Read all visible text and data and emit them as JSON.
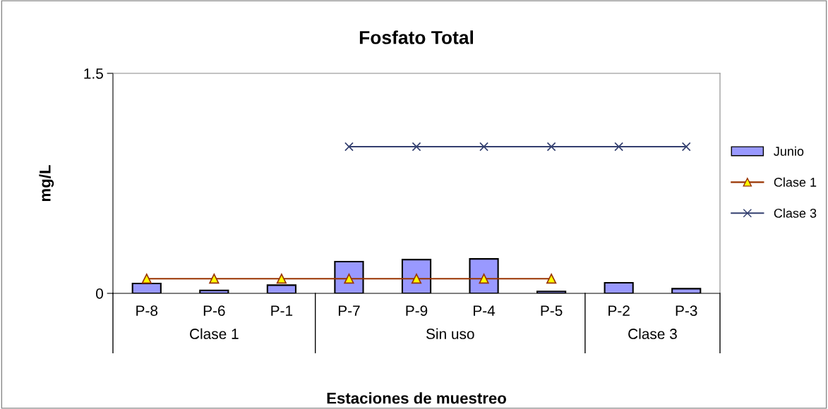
{
  "chart_data": {
    "type": "bar",
    "title": "Fosfato Total",
    "xlabel": "Estaciones de muestreo",
    "ylabel": "mg/L",
    "categories": [
      "P-8",
      "P-6",
      "P-1",
      "P-7",
      "P-9",
      "P-4",
      "P-5",
      "P-2",
      "P-3"
    ],
    "series": [
      {
        "name": "Junio",
        "color": "#9999ff",
        "values": [
          0.067,
          0.02,
          0.056,
          0.216,
          0.23,
          0.235,
          0.013,
          0.072,
          0.032
        ]
      },
      {
        "name": "Clase 1",
        "type": "line",
        "color": "#993300",
        "marker": "triangle",
        "values": [
          0.1,
          0.1,
          0.1,
          0.1,
          0.1,
          0.1,
          0.1,
          null,
          null
        ]
      },
      {
        "name": "Clase 3",
        "type": "line",
        "color": "#333f6f",
        "marker": "cross",
        "values": [
          null,
          null,
          null,
          1.0,
          1.0,
          1.0,
          1.0,
          1.0,
          1.0
        ]
      }
    ],
    "annotations": [
      "Clase 1",
      "Sin uso",
      "Clase 3"
    ],
    "ylim": [
      0,
      1.5
    ],
    "yticks": [
      0,
      1.5
    ],
    "grid": false,
    "legend": "right"
  }
}
